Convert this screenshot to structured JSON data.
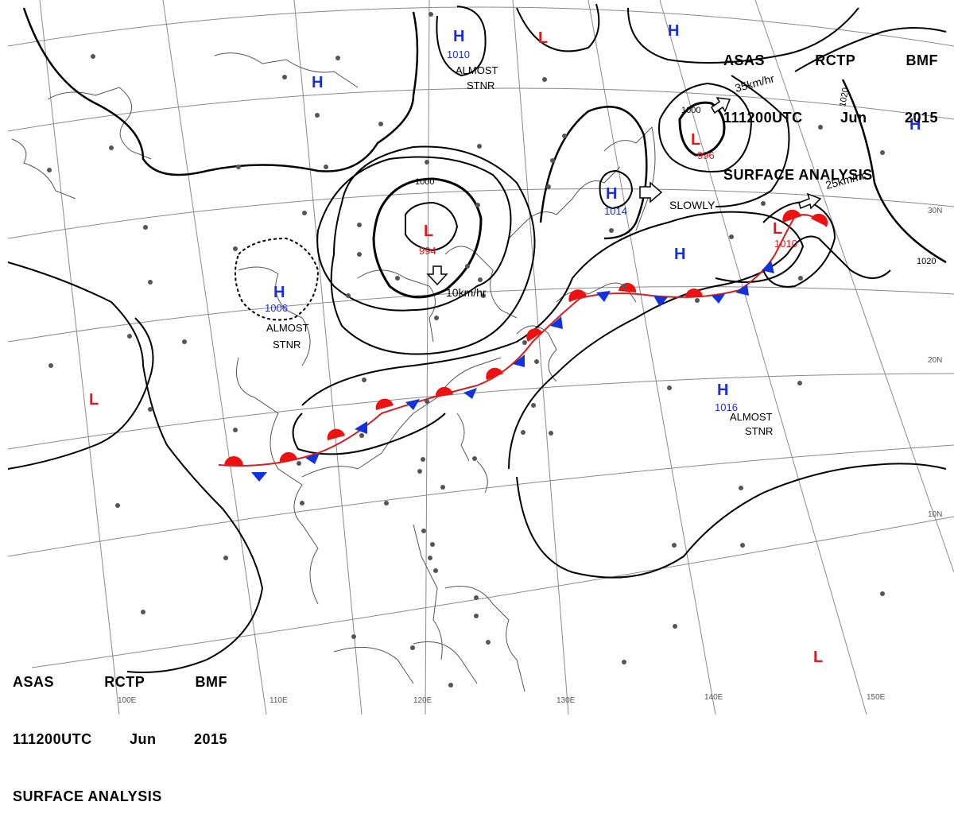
{
  "chart_title": {
    "line1": [
      "ASAS",
      "RCTP",
      "BMF"
    ],
    "line2": [
      "111200UTC",
      "Jun",
      "2015"
    ],
    "line3": "SURFACE ANALYSIS"
  },
  "colors": {
    "high": "#1a2fd6",
    "low": "#e0191f",
    "warm_front": "#ee1111",
    "cold_front": "#1133dd",
    "isobar": "#000000",
    "grid": "#888888",
    "coast": "#555555"
  },
  "longitude_labels": [
    "100E",
    "110E",
    "120E",
    "130E",
    "140E",
    "150E"
  ],
  "latitude_labels": [
    "30N",
    "20N",
    "10N"
  ],
  "isobar_labels": [
    "1000",
    "1000",
    "1020",
    "1020"
  ],
  "pressure_centers": [
    {
      "type": "H",
      "value": "1010",
      "note": "ALMOST\nSTNR"
    },
    {
      "type": "H",
      "value": "",
      "note": ""
    },
    {
      "type": "H",
      "value": "",
      "note": ""
    },
    {
      "type": "H",
      "value": "1014",
      "note": ""
    },
    {
      "type": "H",
      "value": "",
      "note": ""
    },
    {
      "type": "H",
      "value": "1006",
      "note": "ALMOST\nSTNR"
    },
    {
      "type": "H",
      "value": "1016",
      "note": "ALMOST\nSTNR"
    },
    {
      "type": "H",
      "value": "",
      "note": ""
    },
    {
      "type": "L",
      "value": "994",
      "note": ""
    },
    {
      "type": "L",
      "value": "996",
      "note": ""
    },
    {
      "type": "L",
      "value": "1010",
      "note": ""
    },
    {
      "type": "L",
      "value": "",
      "note": ""
    },
    {
      "type": "L",
      "value": "",
      "note": ""
    },
    {
      "type": "L",
      "value": "",
      "note": ""
    }
  ],
  "motion_labels": [
    "10km/hr",
    "35km/hr",
    "25km/hr",
    "SLOWLY"
  ]
}
